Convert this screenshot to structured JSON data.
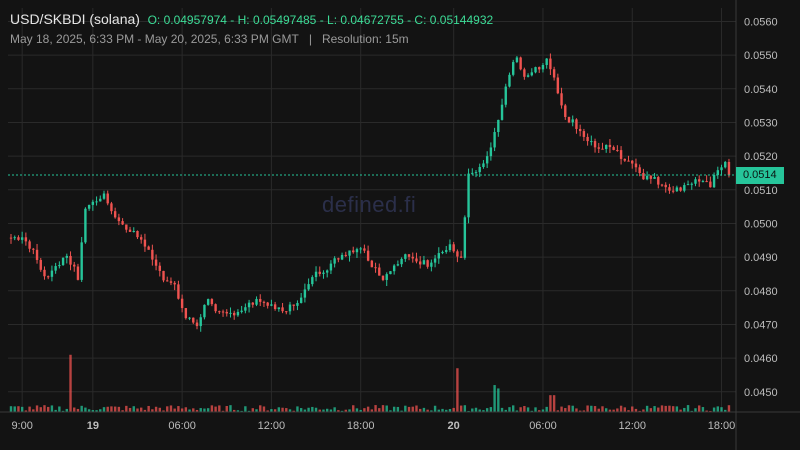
{
  "header": {
    "pair": "USD/SKBDI (solana)",
    "ohlc": "O: 0.04957974 - H: 0.05497485 - L: 0.04672755 - C: 0.05144932",
    "range": "May 18, 2025, 6:33 PM - May 20, 2025, 6:33 PM GMT",
    "separator": "|",
    "resolution": "Resolution: 15m"
  },
  "watermark": "defined.fi",
  "current_price_label": "0.0514",
  "colors": {
    "up": "#26c59a",
    "down": "#ef5350",
    "background": "#131313",
    "grid": "#2a2a2a",
    "price_line": "#26c59a"
  },
  "chart_data": {
    "type": "candlestick",
    "title": "USD/SKBDI (solana)",
    "resolution": "15m",
    "ylim": [
      0.0444,
      0.0564
    ],
    "y_ticks": [
      "0.0560",
      "0.0550",
      "0.0540",
      "0.0530",
      "0.0520",
      "0.0510",
      "0.0500",
      "0.0490",
      "0.0480",
      "0.0470",
      "0.0460",
      "0.0450"
    ],
    "x_ticks": [
      {
        "label": "9:00",
        "bold": false
      },
      {
        "label": "19",
        "bold": true
      },
      {
        "label": "06:00",
        "bold": false
      },
      {
        "label": "12:00",
        "bold": false
      },
      {
        "label": "18:00",
        "bold": false
      },
      {
        "label": "20",
        "bold": true
      },
      {
        "label": "06:00",
        "bold": false
      },
      {
        "label": "12:00",
        "bold": false
      },
      {
        "label": "18:00",
        "bold": false
      }
    ],
    "current_price": 0.05144,
    "grid": true,
    "anchors": [
      [
        0,
        0.04957
      ],
      [
        3,
        0.0496
      ],
      [
        6,
        0.0492
      ],
      [
        9,
        0.0484
      ],
      [
        12,
        0.0487
      ],
      [
        15,
        0.0491
      ],
      [
        18,
        0.0484
      ],
      [
        20,
        0.0505
      ],
      [
        23,
        0.0507
      ],
      [
        25,
        0.0509
      ],
      [
        27,
        0.0504
      ],
      [
        29,
        0.0501
      ],
      [
        32,
        0.0498
      ],
      [
        35,
        0.0495
      ],
      [
        38,
        0.049
      ],
      [
        41,
        0.0484
      ],
      [
        44,
        0.0481
      ],
      [
        47,
        0.0472
      ],
      [
        50,
        0.047
      ],
      [
        53,
        0.0478
      ],
      [
        55,
        0.0473
      ],
      [
        58,
        0.0473
      ],
      [
        61,
        0.0474
      ],
      [
        64,
        0.0476
      ],
      [
        67,
        0.0477
      ],
      [
        70,
        0.0475
      ],
      [
        73,
        0.0474
      ],
      [
        76,
        0.0476
      ],
      [
        79,
        0.048
      ],
      [
        82,
        0.0485
      ],
      [
        85,
        0.0487
      ],
      [
        88,
        0.049
      ],
      [
        91,
        0.0492
      ],
      [
        94,
        0.0493
      ],
      [
        97,
        0.0488
      ],
      [
        100,
        0.0484
      ],
      [
        103,
        0.0487
      ],
      [
        106,
        0.049
      ],
      [
        109,
        0.0489
      ],
      [
        112,
        0.0488
      ],
      [
        115,
        0.0491
      ],
      [
        118,
        0.0493
      ],
      [
        121,
        0.0489
      ],
      [
        123,
        0.0514
      ],
      [
        126,
        0.0516
      ],
      [
        129,
        0.0522
      ],
      [
        132,
        0.0535
      ],
      [
        134,
        0.0545
      ],
      [
        136,
        0.0549
      ],
      [
        138,
        0.0543
      ],
      [
        141,
        0.0546
      ],
      [
        144,
        0.0548
      ],
      [
        146,
        0.0543
      ],
      [
        149,
        0.0532
      ],
      [
        152,
        0.0529
      ],
      [
        155,
        0.0525
      ],
      [
        158,
        0.0522
      ],
      [
        161,
        0.0523
      ],
      [
        164,
        0.052
      ],
      [
        167,
        0.0518
      ],
      [
        170,
        0.0514
      ],
      [
        173,
        0.0513
      ],
      [
        176,
        0.0511
      ],
      [
        179,
        0.051
      ],
      [
        182,
        0.0512
      ],
      [
        185,
        0.0513
      ],
      [
        188,
        0.0511
      ],
      [
        190,
        0.0516
      ],
      [
        192,
        0.0519
      ],
      [
        193,
        0.05144
      ]
    ],
    "volume_spikes": [
      {
        "index": 16,
        "level": 0.0461
      },
      {
        "index": 120,
        "level": 0.0457
      },
      {
        "index": 130,
        "level": 0.0452
      },
      {
        "index": 131,
        "level": 0.0451
      },
      {
        "index": 145,
        "level": 0.0449
      },
      {
        "index": 146,
        "level": 0.0449
      }
    ]
  }
}
